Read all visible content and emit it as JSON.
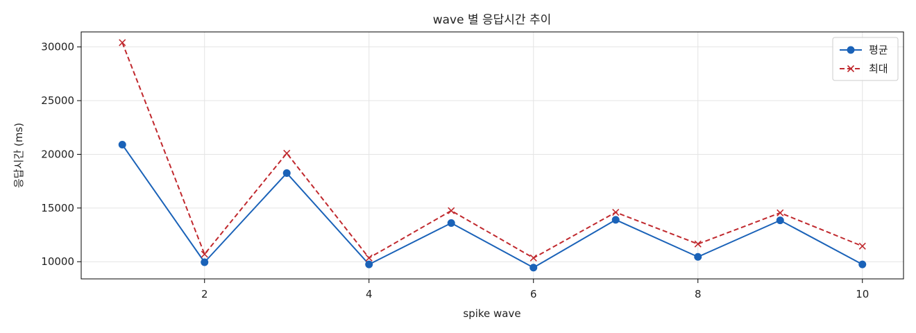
{
  "chart_data": {
    "type": "line",
    "title": "wave 별 응답시간 추이",
    "xlabel": "spike wave",
    "ylabel": "응답시간 (ms)",
    "x": [
      1,
      2,
      3,
      4,
      5,
      6,
      7,
      8,
      9,
      10
    ],
    "xlim": [
      0.5,
      10.5
    ],
    "ylim": [
      8400,
      31400
    ],
    "xticks": [
      2,
      4,
      6,
      8,
      10
    ],
    "yticks": [
      10000,
      15000,
      20000,
      25000,
      30000
    ],
    "grid": true,
    "legend_position": "top-right",
    "series": [
      {
        "name": "평균",
        "color": "#1a62b8",
        "line_style": "solid",
        "marker": "circle",
        "values": [
          20900,
          9950,
          18250,
          9750,
          13600,
          9450,
          13900,
          10450,
          13850,
          9750
        ]
      },
      {
        "name": "최대",
        "color": "#c0282d",
        "line_style": "dashed",
        "marker": "x",
        "values": [
          30400,
          10700,
          20100,
          10350,
          14750,
          10350,
          14600,
          11650,
          14550,
          11450
        ]
      }
    ]
  }
}
